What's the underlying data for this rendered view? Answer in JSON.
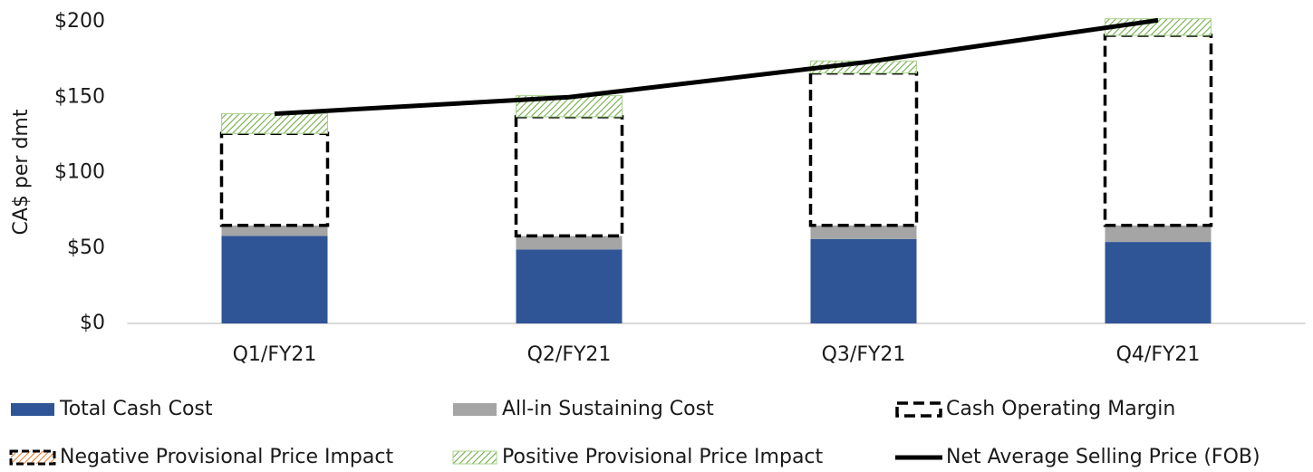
{
  "chart_data": {
    "type": "bar",
    "y_label": "CA$ per dmt",
    "categories": [
      "Q1/FY21",
      "Q2/FY21",
      "Q3/FY21",
      "Q4/FY21"
    ],
    "series": [
      {
        "name": "Total Cash Cost",
        "color": "#2f5597",
        "values": [
          58,
          49,
          56,
          54
        ]
      },
      {
        "name": "All-in Sustaining Cost",
        "color": "#a5a5a5",
        "values": [
          7,
          9,
          9,
          11
        ]
      },
      {
        "name": "Cash Operating Margin",
        "color": "#ffffff",
        "values": [
          61,
          79,
          101,
          126
        ]
      },
      {
        "name": "Negative Provisional Price Impact",
        "color": "#f4b183",
        "values": [
          0,
          0,
          0,
          0
        ]
      },
      {
        "name": "Positive Provisional Price Impact",
        "color": "#a9d18e",
        "values": [
          13,
          14,
          8,
          11
        ]
      },
      {
        "name": "Net Average Selling Price (FOB)",
        "color": "#000000",
        "type": "line",
        "values": [
          139,
          150,
          173,
          201
        ]
      }
    ],
    "ylim": [
      0,
      200
    ],
    "yticks": [
      {
        "value": 0,
        "label": "$0"
      },
      {
        "value": 50,
        "label": "$50"
      },
      {
        "value": 100,
        "label": "$100"
      },
      {
        "value": 150,
        "label": "$150"
      },
      {
        "value": 200,
        "label": "$200"
      }
    ],
    "grid": false,
    "legend": "bottom"
  }
}
